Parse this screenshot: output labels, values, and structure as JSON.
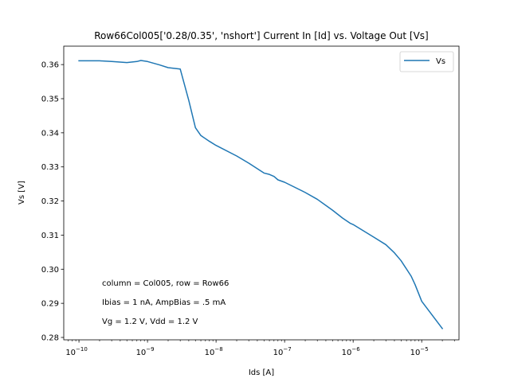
{
  "chart_data": {
    "type": "line",
    "title": "Row66Col005['0.28/0.35', 'nshort'] Current In [Id] vs. Voltage Out [Vs]",
    "xlabel": "Ids [A]",
    "ylabel": "Vs [V]",
    "xscale": "log",
    "xlim": [
      6e-11,
      3.5e-05
    ],
    "ylim": [
      0.2793,
      0.3654
    ],
    "xticks": [
      {
        "value": 1e-10,
        "mant": "10",
        "exp": "−10"
      },
      {
        "value": 1e-09,
        "mant": "10",
        "exp": "−9"
      },
      {
        "value": 1e-08,
        "mant": "10",
        "exp": "−8"
      },
      {
        "value": 1e-07,
        "mant": "10",
        "exp": "−7"
      },
      {
        "value": 1e-06,
        "mant": "10",
        "exp": "−6"
      },
      {
        "value": 1e-05,
        "mant": "10",
        "exp": "−5"
      }
    ],
    "yticks": [
      {
        "value": 0.28,
        "label": "0.28"
      },
      {
        "value": 0.29,
        "label": "0.29"
      },
      {
        "value": 0.3,
        "label": "0.30"
      },
      {
        "value": 0.31,
        "label": "0.31"
      },
      {
        "value": 0.32,
        "label": "0.32"
      },
      {
        "value": 0.33,
        "label": "0.33"
      },
      {
        "value": 0.34,
        "label": "0.34"
      },
      {
        "value": 0.35,
        "label": "0.35"
      },
      {
        "value": 0.36,
        "label": "0.36"
      }
    ],
    "grid": false,
    "legend_position": "top-right",
    "series": [
      {
        "name": "Vs",
        "color": "#1f77b4",
        "x": [
          1e-10,
          2e-10,
          3e-10,
          5e-10,
          7e-10,
          8e-10,
          1e-09,
          1.5e-09,
          2e-09,
          3e-09,
          4e-09,
          5e-09,
          6e-09,
          8e-09,
          1e-08,
          2e-08,
          3e-08,
          5e-08,
          6e-08,
          7e-08,
          8e-08,
          1e-07,
          2e-07,
          3e-07,
          5e-07,
          7e-07,
          9e-07,
          1e-06,
          2e-06,
          3e-06,
          4e-06,
          5e-06,
          7e-06,
          8e-06,
          1e-05,
          2e-05
        ],
        "y": [
          0.3611,
          0.3611,
          0.3609,
          0.3606,
          0.3609,
          0.3612,
          0.3609,
          0.3599,
          0.3591,
          0.3587,
          0.3495,
          0.3415,
          0.3392,
          0.3375,
          0.3363,
          0.3332,
          0.3311,
          0.3282,
          0.3278,
          0.3272,
          0.3262,
          0.3255,
          0.3225,
          0.3205,
          0.3173,
          0.315,
          0.3135,
          0.3131,
          0.3094,
          0.3072,
          0.3048,
          0.3025,
          0.298,
          0.2955,
          0.2906,
          0.2826
        ]
      }
    ],
    "annotations": [
      "column = Col005, row = Row66",
      "Ibias = 1 nA, AmpBias = .5 mA",
      "Vg = 1.2 V, Vdd = 1.2 V"
    ]
  }
}
